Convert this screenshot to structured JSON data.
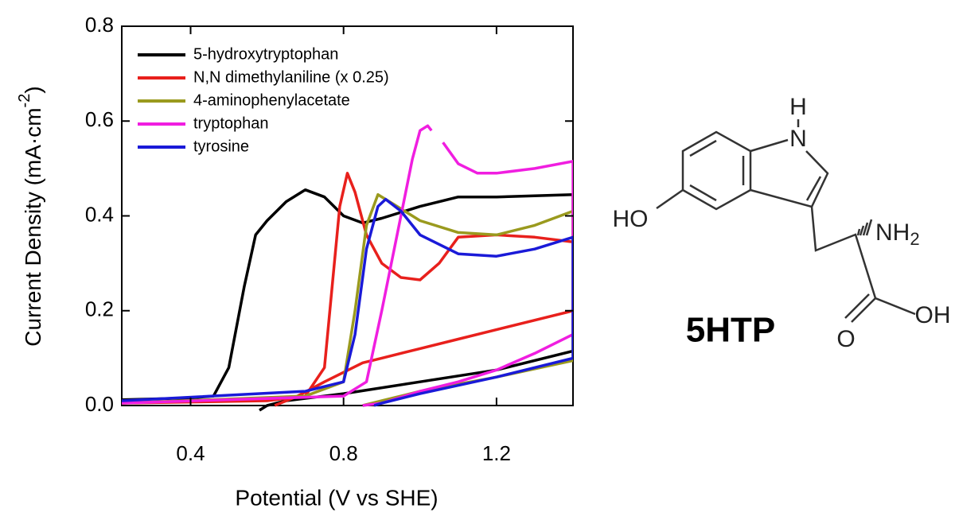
{
  "chart_data": {
    "type": "line",
    "xlabel": "Potential (V vs SHE)",
    "ylabel": {
      "text": "Current Density (mA·cm",
      "superscript": "-2",
      "end": ")"
    },
    "xlim": [
      0.22,
      1.4
    ],
    "ylim": [
      0,
      0.8
    ],
    "xticks": [
      0.4,
      0.8,
      1.2
    ],
    "yticks": [
      {
        "value": 0,
        "label": "0.0"
      },
      0.2,
      0.4,
      0.6,
      0.8
    ],
    "legend": "upper left",
    "series": [
      {
        "name": "5-hydroxytryptophan",
        "color": "#000000",
        "x": [
          0.22,
          0.4,
          0.46,
          0.5,
          0.54,
          0.57,
          0.6,
          0.65,
          0.7,
          0.75,
          0.8,
          0.85,
          0.9,
          1.0,
          1.1,
          1.2,
          1.4,
          1.4,
          1.2,
          1.0,
          0.8,
          0.65,
          0.6,
          0.58
        ],
        "values": [
          0.012,
          0.016,
          0.02,
          0.08,
          0.25,
          0.36,
          0.39,
          0.43,
          0.455,
          0.44,
          0.4,
          0.385,
          0.395,
          0.42,
          0.44,
          0.44,
          0.445,
          0.115,
          0.075,
          0.05,
          0.025,
          0.01,
          0.0,
          -0.01
        ]
      },
      {
        "name": "N,N dimethylaniline (x 0.25)",
        "color": "#e8201c",
        "x": [
          0.22,
          0.6,
          0.7,
          0.75,
          0.77,
          0.79,
          0.81,
          0.83,
          0.86,
          0.9,
          0.95,
          1.0,
          1.05,
          1.1,
          1.2,
          1.3,
          1.4,
          1.4,
          1.2,
          1.1,
          1.0,
          0.9,
          0.85,
          0.75,
          0.68,
          0.62
        ],
        "values": [
          0.005,
          0.01,
          0.02,
          0.08,
          0.25,
          0.42,
          0.49,
          0.45,
          0.36,
          0.3,
          0.27,
          0.265,
          0.3,
          0.355,
          0.36,
          0.355,
          0.345,
          0.2,
          0.16,
          0.14,
          0.12,
          0.1,
          0.09,
          0.05,
          0.02,
          0.0
        ]
      },
      {
        "name": "4-aminophenylacetate",
        "color": "#9a9a1e",
        "x": [
          0.22,
          0.7,
          0.8,
          0.83,
          0.86,
          0.89,
          0.92,
          1.0,
          1.1,
          1.2,
          1.3,
          1.4,
          1.4,
          1.2,
          1.0,
          0.9,
          0.85
        ],
        "values": [
          0.005,
          0.02,
          0.05,
          0.2,
          0.38,
          0.445,
          0.43,
          0.39,
          0.365,
          0.36,
          0.38,
          0.41,
          0.095,
          0.06,
          0.03,
          0.01,
          0.0
        ]
      },
      {
        "name": "tryptophan",
        "color": "#f01ee0",
        "x": [
          0.22,
          0.8,
          0.86,
          0.9,
          0.95,
          0.98,
          1.0,
          1.02,
          1.03,
          null,
          1.06,
          1.1,
          1.15,
          1.2,
          1.3,
          1.4,
          1.4,
          1.3,
          1.2,
          1.1,
          1.0,
          0.9,
          0.85
        ],
        "values": [
          0.005,
          0.02,
          0.05,
          0.2,
          0.4,
          0.52,
          0.58,
          0.59,
          0.58,
          null,
          0.555,
          0.51,
          0.49,
          0.49,
          0.5,
          0.515,
          0.15,
          0.11,
          0.075,
          0.05,
          0.03,
          0.005,
          0.0
        ]
      },
      {
        "name": "tyrosine",
        "color": "#1a1ad8",
        "x": [
          0.22,
          0.7,
          0.8,
          0.83,
          0.86,
          0.89,
          0.91,
          0.95,
          1.0,
          1.1,
          1.2,
          1.3,
          1.4,
          1.4,
          1.2,
          1.0,
          0.9,
          0.88
        ],
        "values": [
          0.01,
          0.03,
          0.05,
          0.15,
          0.33,
          0.42,
          0.435,
          0.41,
          0.36,
          0.32,
          0.315,
          0.33,
          0.355,
          0.1,
          0.06,
          0.025,
          0.005,
          0.0
        ]
      }
    ]
  },
  "structure": {
    "name": "5HTP",
    "atoms": {
      "h": "H",
      "n": "N",
      "ho": "HO",
      "nh": "NH",
      "nh_sub": "2",
      "o": "O",
      "oh": "OH"
    }
  }
}
